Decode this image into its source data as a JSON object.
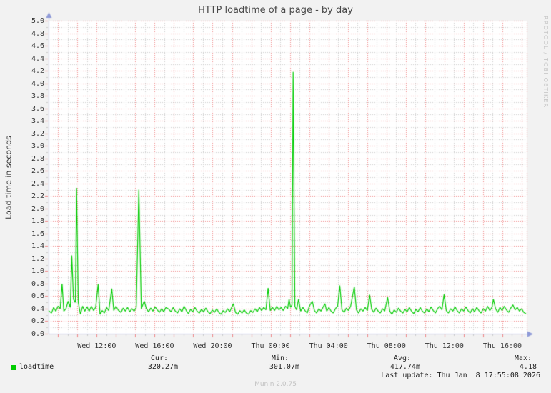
{
  "title": "HTTP loadtime of a page - by day",
  "y_axis_title": "Load time in seconds",
  "watermark": "RRDTOOL / TOBI OETIKER",
  "footer": "Munin 2.0.75",
  "legend": {
    "series_label": "loadtime",
    "cur_label": "Cur:",
    "cur_value": "320.27m",
    "min_label": "Min:",
    "min_value": "301.07m",
    "avg_label": "Avg:",
    "avg_value": "417.74m",
    "max_label": "Max:",
    "max_value": "4.18",
    "last_update": "Last update: Thu Jan  8 17:55:08 2026"
  },
  "colors": {
    "line": "#00cc00",
    "grid_major": "#f08888",
    "grid_minor": "#cccccc",
    "axis": "#b0b8e4",
    "arrow": "#8f9ad8",
    "plot_background": "#ffffff",
    "page_background": "#f2f2f2"
  },
  "chart_data": {
    "type": "line",
    "title": "HTTP loadtime of a page - by day",
    "ylabel": "Load time in seconds",
    "series_name": "loadtime",
    "ylim": [
      0.0,
      5.0
    ],
    "y_major_step": 0.2,
    "y_minor_step": 0.1,
    "x_total_hours": 33.0,
    "x_minor_step_hours": 0.6667,
    "grid": true,
    "legend_position": "bottom",
    "ytick_labels": [
      "0.0",
      "0.2",
      "0.4",
      "0.6",
      "0.8",
      "1.0",
      "1.2",
      "1.4",
      "1.6",
      "1.8",
      "2.0",
      "2.2",
      "2.4",
      "2.6",
      "2.8",
      "3.0",
      "3.2",
      "3.4",
      "3.6",
      "3.8",
      "4.0",
      "4.2",
      "4.4",
      "4.6",
      "4.8",
      "5.0"
    ],
    "xticks": [
      {
        "label": "Wed 12:00",
        "hour": 3.32
      },
      {
        "label": "Wed 16:00",
        "hour": 7.32
      },
      {
        "label": "Wed 20:00",
        "hour": 11.32
      },
      {
        "label": "Thu 00:00",
        "hour": 15.32
      },
      {
        "label": "Thu 04:00",
        "hour": 19.32
      },
      {
        "label": "Thu 08:00",
        "hour": 23.32
      },
      {
        "label": "Thu 12:00",
        "hour": 27.32
      },
      {
        "label": "Thu 16:00",
        "hour": 31.32
      }
    ],
    "stats": {
      "cur": 0.32027,
      "min": 0.30107,
      "avg": 0.41774,
      "max": 4.18
    },
    "points": [
      [
        0,
        0.37
      ],
      [
        0.2,
        0.33
      ],
      [
        0.35,
        0.42
      ],
      [
        0.5,
        0.36
      ],
      [
        0.65,
        0.44
      ],
      [
        0.8,
        0.4
      ],
      [
        0.93,
        0.8
      ],
      [
        1.05,
        0.36
      ],
      [
        1.2,
        0.4
      ],
      [
        1.35,
        0.52
      ],
      [
        1.5,
        0.42
      ],
      [
        1.6,
        1.25
      ],
      [
        1.72,
        0.55
      ],
      [
        1.85,
        0.5
      ],
      [
        1.93,
        2.33
      ],
      [
        2.05,
        0.5
      ],
      [
        2.2,
        0.31
      ],
      [
        2.35,
        0.44
      ],
      [
        2.5,
        0.36
      ],
      [
        2.65,
        0.43
      ],
      [
        2.8,
        0.36
      ],
      [
        2.95,
        0.44
      ],
      [
        3.1,
        0.37
      ],
      [
        3.25,
        0.42
      ],
      [
        3.42,
        0.79
      ],
      [
        3.55,
        0.31
      ],
      [
        3.7,
        0.37
      ],
      [
        3.85,
        0.33
      ],
      [
        4.0,
        0.42
      ],
      [
        4.15,
        0.37
      ],
      [
        4.36,
        0.72
      ],
      [
        4.5,
        0.37
      ],
      [
        4.65,
        0.44
      ],
      [
        4.8,
        0.38
      ],
      [
        5.0,
        0.34
      ],
      [
        5.15,
        0.41
      ],
      [
        5.3,
        0.36
      ],
      [
        5.45,
        0.42
      ],
      [
        5.6,
        0.35
      ],
      [
        5.75,
        0.4
      ],
      [
        5.9,
        0.36
      ],
      [
        6.05,
        0.42
      ],
      [
        6.23,
        2.3
      ],
      [
        6.4,
        0.4
      ],
      [
        6.6,
        0.52
      ],
      [
        6.75,
        0.4
      ],
      [
        6.9,
        0.35
      ],
      [
        7.05,
        0.41
      ],
      [
        7.2,
        0.36
      ],
      [
        7.35,
        0.43
      ],
      [
        7.5,
        0.38
      ],
      [
        7.65,
        0.34
      ],
      [
        7.8,
        0.4
      ],
      [
        7.95,
        0.35
      ],
      [
        8.1,
        0.42
      ],
      [
        8.3,
        0.39
      ],
      [
        8.45,
        0.35
      ],
      [
        8.6,
        0.42
      ],
      [
        8.75,
        0.36
      ],
      [
        8.9,
        0.33
      ],
      [
        9.05,
        0.4
      ],
      [
        9.2,
        0.35
      ],
      [
        9.35,
        0.44
      ],
      [
        9.5,
        0.37
      ],
      [
        9.65,
        0.32
      ],
      [
        9.8,
        0.39
      ],
      [
        9.95,
        0.35
      ],
      [
        10.1,
        0.42
      ],
      [
        10.25,
        0.36
      ],
      [
        10.4,
        0.33
      ],
      [
        10.55,
        0.39
      ],
      [
        10.7,
        0.35
      ],
      [
        10.85,
        0.41
      ],
      [
        11.0,
        0.35
      ],
      [
        11.15,
        0.32
      ],
      [
        11.3,
        0.38
      ],
      [
        11.45,
        0.34
      ],
      [
        11.6,
        0.4
      ],
      [
        11.75,
        0.34
      ],
      [
        11.9,
        0.31
      ],
      [
        12.05,
        0.37
      ],
      [
        12.2,
        0.34
      ],
      [
        12.35,
        0.4
      ],
      [
        12.5,
        0.35
      ],
      [
        12.75,
        0.48
      ],
      [
        12.9,
        0.34
      ],
      [
        13.05,
        0.31
      ],
      [
        13.2,
        0.37
      ],
      [
        13.35,
        0.33
      ],
      [
        13.5,
        0.38
      ],
      [
        13.65,
        0.33
      ],
      [
        13.8,
        0.31
      ],
      [
        13.95,
        0.37
      ],
      [
        14.1,
        0.34
      ],
      [
        14.25,
        0.4
      ],
      [
        14.4,
        0.35
      ],
      [
        14.55,
        0.42
      ],
      [
        14.7,
        0.37
      ],
      [
        14.85,
        0.42
      ],
      [
        15.0,
        0.38
      ],
      [
        15.15,
        0.73
      ],
      [
        15.3,
        0.37
      ],
      [
        15.45,
        0.42
      ],
      [
        15.6,
        0.37
      ],
      [
        15.75,
        0.44
      ],
      [
        15.9,
        0.38
      ],
      [
        16.05,
        0.42
      ],
      [
        16.2,
        0.37
      ],
      [
        16.35,
        0.44
      ],
      [
        16.5,
        0.4
      ],
      [
        16.6,
        0.55
      ],
      [
        16.7,
        0.42
      ],
      [
        16.8,
        0.46
      ],
      [
        16.88,
        4.18
      ],
      [
        17.0,
        0.44
      ],
      [
        17.12,
        0.38
      ],
      [
        17.25,
        0.55
      ],
      [
        17.4,
        0.36
      ],
      [
        17.55,
        0.42
      ],
      [
        17.7,
        0.37
      ],
      [
        17.85,
        0.33
      ],
      [
        18.0,
        0.44
      ],
      [
        18.2,
        0.52
      ],
      [
        18.35,
        0.37
      ],
      [
        18.5,
        0.33
      ],
      [
        18.65,
        0.4
      ],
      [
        18.8,
        0.36
      ],
      [
        19.07,
        0.48
      ],
      [
        19.2,
        0.36
      ],
      [
        19.35,
        0.42
      ],
      [
        19.5,
        0.36
      ],
      [
        19.65,
        0.33
      ],
      [
        19.8,
        0.4
      ],
      [
        19.95,
        0.44
      ],
      [
        20.1,
        0.77
      ],
      [
        20.25,
        0.38
      ],
      [
        20.4,
        0.34
      ],
      [
        20.55,
        0.41
      ],
      [
        20.7,
        0.37
      ],
      [
        20.85,
        0.44
      ],
      [
        21.1,
        0.75
      ],
      [
        21.25,
        0.38
      ],
      [
        21.4,
        0.33
      ],
      [
        21.55,
        0.4
      ],
      [
        21.7,
        0.36
      ],
      [
        21.85,
        0.42
      ],
      [
        22.0,
        0.37
      ],
      [
        22.16,
        0.62
      ],
      [
        22.3,
        0.39
      ],
      [
        22.45,
        0.34
      ],
      [
        22.6,
        0.41
      ],
      [
        22.75,
        0.36
      ],
      [
        22.9,
        0.33
      ],
      [
        23.05,
        0.4
      ],
      [
        23.2,
        0.36
      ],
      [
        23.4,
        0.58
      ],
      [
        23.55,
        0.36
      ],
      [
        23.7,
        0.31
      ],
      [
        23.85,
        0.38
      ],
      [
        24.0,
        0.34
      ],
      [
        24.15,
        0.41
      ],
      [
        24.3,
        0.36
      ],
      [
        24.45,
        0.33
      ],
      [
        24.6,
        0.39
      ],
      [
        24.75,
        0.35
      ],
      [
        24.9,
        0.42
      ],
      [
        25.05,
        0.36
      ],
      [
        25.2,
        0.32
      ],
      [
        25.35,
        0.39
      ],
      [
        25.5,
        0.35
      ],
      [
        25.65,
        0.42
      ],
      [
        25.8,
        0.36
      ],
      [
        25.95,
        0.33
      ],
      [
        26.1,
        0.4
      ],
      [
        26.25,
        0.35
      ],
      [
        26.4,
        0.43
      ],
      [
        26.55,
        0.37
      ],
      [
        26.7,
        0.33
      ],
      [
        26.85,
        0.4
      ],
      [
        27.0,
        0.44
      ],
      [
        27.15,
        0.38
      ],
      [
        27.3,
        0.63
      ],
      [
        27.45,
        0.37
      ],
      [
        27.6,
        0.33
      ],
      [
        27.75,
        0.4
      ],
      [
        27.9,
        0.36
      ],
      [
        28.05,
        0.43
      ],
      [
        28.2,
        0.37
      ],
      [
        28.35,
        0.33
      ],
      [
        28.5,
        0.4
      ],
      [
        28.65,
        0.36
      ],
      [
        28.8,
        0.43
      ],
      [
        28.95,
        0.37
      ],
      [
        29.1,
        0.33
      ],
      [
        29.25,
        0.4
      ],
      [
        29.4,
        0.35
      ],
      [
        29.55,
        0.42
      ],
      [
        29.7,
        0.37
      ],
      [
        29.85,
        0.33
      ],
      [
        30.0,
        0.4
      ],
      [
        30.15,
        0.36
      ],
      [
        30.3,
        0.44
      ],
      [
        30.45,
        0.37
      ],
      [
        30.6,
        0.42
      ],
      [
        30.7,
        0.55
      ],
      [
        30.85,
        0.4
      ],
      [
        31.0,
        0.34
      ],
      [
        31.15,
        0.42
      ],
      [
        31.3,
        0.37
      ],
      [
        31.45,
        0.44
      ],
      [
        31.6,
        0.38
      ],
      [
        31.75,
        0.34
      ],
      [
        31.9,
        0.41
      ],
      [
        32.05,
        0.46
      ],
      [
        32.2,
        0.38
      ],
      [
        32.35,
        0.42
      ],
      [
        32.5,
        0.36
      ],
      [
        32.65,
        0.4
      ],
      [
        32.8,
        0.34
      ],
      [
        32.95,
        0.32
      ]
    ]
  }
}
